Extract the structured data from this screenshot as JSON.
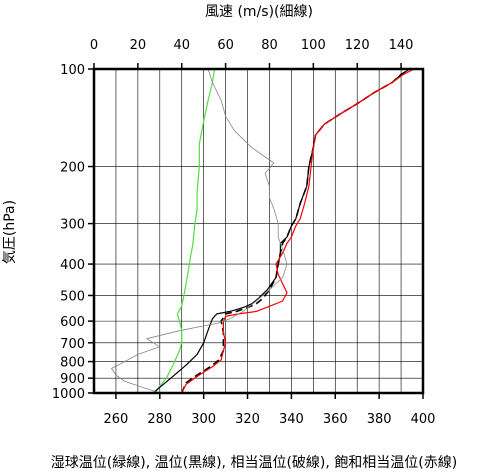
{
  "chart_data": {
    "type": "line",
    "top_axis_label": "風速 (m/s)(細線)",
    "bottom_axis_label": "湿球温位(緑線), 温位(黒線), 相当温位(破線), 飽和相当温位(赤線)",
    "y_axis_label": "気圧(hPa)",
    "y_scale": "log",
    "y_reversed": true,
    "ylim": [
      1000,
      100
    ],
    "x_bottom_lim": [
      250,
      400
    ],
    "x_top_lim": [
      0,
      150
    ],
    "y_ticks": [
      100,
      200,
      300,
      400,
      500,
      600,
      700,
      800,
      900,
      1000
    ],
    "x_bottom_ticks": [
      260,
      280,
      300,
      320,
      340,
      360,
      380,
      400
    ],
    "x_top_ticks": [
      0,
      20,
      40,
      60,
      80,
      100,
      120,
      140
    ],
    "grid": true,
    "series": [
      {
        "name": "湿球温位",
        "axis": "bottom",
        "color": "#55dd44",
        "dash": false,
        "points": [
          [
            278,
            1000
          ],
          [
            279,
            970
          ],
          [
            283,
            900
          ],
          [
            286,
            820
          ],
          [
            289,
            740
          ],
          [
            290,
            700
          ],
          [
            290,
            640
          ],
          [
            289,
            600
          ],
          [
            288,
            570
          ],
          [
            290,
            540
          ],
          [
            291,
            500
          ],
          [
            292,
            460
          ],
          [
            293,
            420
          ],
          [
            294,
            380
          ],
          [
            295,
            350
          ],
          [
            296,
            300
          ],
          [
            297,
            270
          ],
          [
            297,
            240
          ],
          [
            298,
            200
          ],
          [
            298,
            170
          ],
          [
            300,
            145
          ],
          [
            302,
            125
          ],
          [
            304,
            110
          ],
          [
            305,
            100
          ]
        ]
      },
      {
        "name": "温位",
        "axis": "bottom",
        "color": "#000000",
        "dash": false,
        "points": [
          [
            277,
            1000
          ],
          [
            280,
            960
          ],
          [
            285,
            900
          ],
          [
            292,
            820
          ],
          [
            297,
            760
          ],
          [
            300,
            700
          ],
          [
            302,
            640
          ],
          [
            304,
            590
          ],
          [
            306,
            570
          ],
          [
            312,
            560
          ],
          [
            318,
            545
          ],
          [
            322,
            530
          ],
          [
            325,
            510
          ],
          [
            329,
            480
          ],
          [
            333,
            440
          ],
          [
            334,
            400
          ],
          [
            335,
            370
          ],
          [
            335,
            345
          ],
          [
            338,
            330
          ],
          [
            340,
            305
          ],
          [
            342,
            290
          ],
          [
            344,
            260
          ],
          [
            347,
            230
          ],
          [
            348,
            200
          ],
          [
            350,
            175
          ],
          [
            351,
            160
          ],
          [
            355,
            148
          ],
          [
            362,
            138
          ],
          [
            370,
            128
          ],
          [
            378,
            118
          ],
          [
            386,
            110
          ],
          [
            390,
            104
          ],
          [
            394,
            100
          ]
        ]
      },
      {
        "name": "相当温位",
        "axis": "bottom",
        "color": "#000000",
        "dash": true,
        "points": [
          [
            290,
            1000
          ],
          [
            292,
            930
          ],
          [
            297,
            880
          ],
          [
            303,
            830
          ],
          [
            307,
            790
          ],
          [
            309,
            740
          ],
          [
            309,
            700
          ],
          [
            309,
            650
          ],
          [
            308,
            600
          ],
          [
            310,
            570
          ],
          [
            315,
            560
          ],
          [
            320,
            545
          ],
          [
            324,
            530
          ],
          [
            327,
            510
          ],
          [
            330,
            480
          ],
          [
            333,
            440
          ],
          [
            334,
            400
          ],
          [
            335,
            370
          ],
          [
            336,
            345
          ],
          [
            338,
            330
          ],
          [
            340,
            305
          ],
          [
            342,
            290
          ],
          [
            344,
            260
          ],
          [
            347,
            230
          ],
          [
            348,
            200
          ],
          [
            350,
            175
          ],
          [
            351,
            160
          ],
          [
            355,
            148
          ],
          [
            362,
            138
          ],
          [
            370,
            128
          ],
          [
            378,
            118
          ],
          [
            386,
            110
          ],
          [
            390,
            104
          ],
          [
            394,
            100
          ]
        ]
      },
      {
        "name": "飽和相当温位",
        "axis": "bottom",
        "color": "#ff0000",
        "dash": false,
        "points": [
          [
            290,
            1000
          ],
          [
            292,
            940
          ],
          [
            298,
            880
          ],
          [
            304,
            830
          ],
          [
            308,
            790
          ],
          [
            309,
            740
          ],
          [
            310,
            700
          ],
          [
            309,
            650
          ],
          [
            309,
            600
          ],
          [
            310,
            580
          ],
          [
            316,
            570
          ],
          [
            324,
            560
          ],
          [
            330,
            540
          ],
          [
            336,
            520
          ],
          [
            338,
            490
          ],
          [
            336,
            460
          ],
          [
            334,
            430
          ],
          [
            333,
            400
          ],
          [
            336,
            370
          ],
          [
            338,
            345
          ],
          [
            340,
            330
          ],
          [
            342,
            305
          ],
          [
            344,
            290
          ],
          [
            346,
            260
          ],
          [
            348,
            230
          ],
          [
            349,
            200
          ],
          [
            350,
            175
          ],
          [
            351,
            160
          ],
          [
            355,
            148
          ],
          [
            362,
            138
          ],
          [
            370,
            128
          ],
          [
            378,
            118
          ],
          [
            386,
            110
          ],
          [
            391,
            104
          ],
          [
            396,
            100
          ]
        ]
      },
      {
        "name": "風速",
        "axis": "top",
        "color": "#888888",
        "dash": false,
        "points": [
          [
            30,
            1000
          ],
          [
            22,
            960
          ],
          [
            14,
            920
          ],
          [
            10,
            880
          ],
          [
            8,
            840
          ],
          [
            14,
            800
          ],
          [
            20,
            760
          ],
          [
            30,
            720
          ],
          [
            24,
            680
          ],
          [
            40,
            640
          ],
          [
            56,
            610
          ],
          [
            62,
            590
          ],
          [
            68,
            560
          ],
          [
            74,
            520
          ],
          [
            80,
            480
          ],
          [
            86,
            440
          ],
          [
            88,
            400
          ],
          [
            86,
            360
          ],
          [
            84,
            330
          ],
          [
            84,
            300
          ],
          [
            82,
            270
          ],
          [
            80,
            250
          ],
          [
            80,
            230
          ],
          [
            78,
            210
          ],
          [
            82,
            195
          ],
          [
            72,
            175
          ],
          [
            64,
            155
          ],
          [
            60,
            140
          ],
          [
            58,
            125
          ],
          [
            54,
            110
          ],
          [
            52,
            100
          ]
        ]
      }
    ]
  }
}
